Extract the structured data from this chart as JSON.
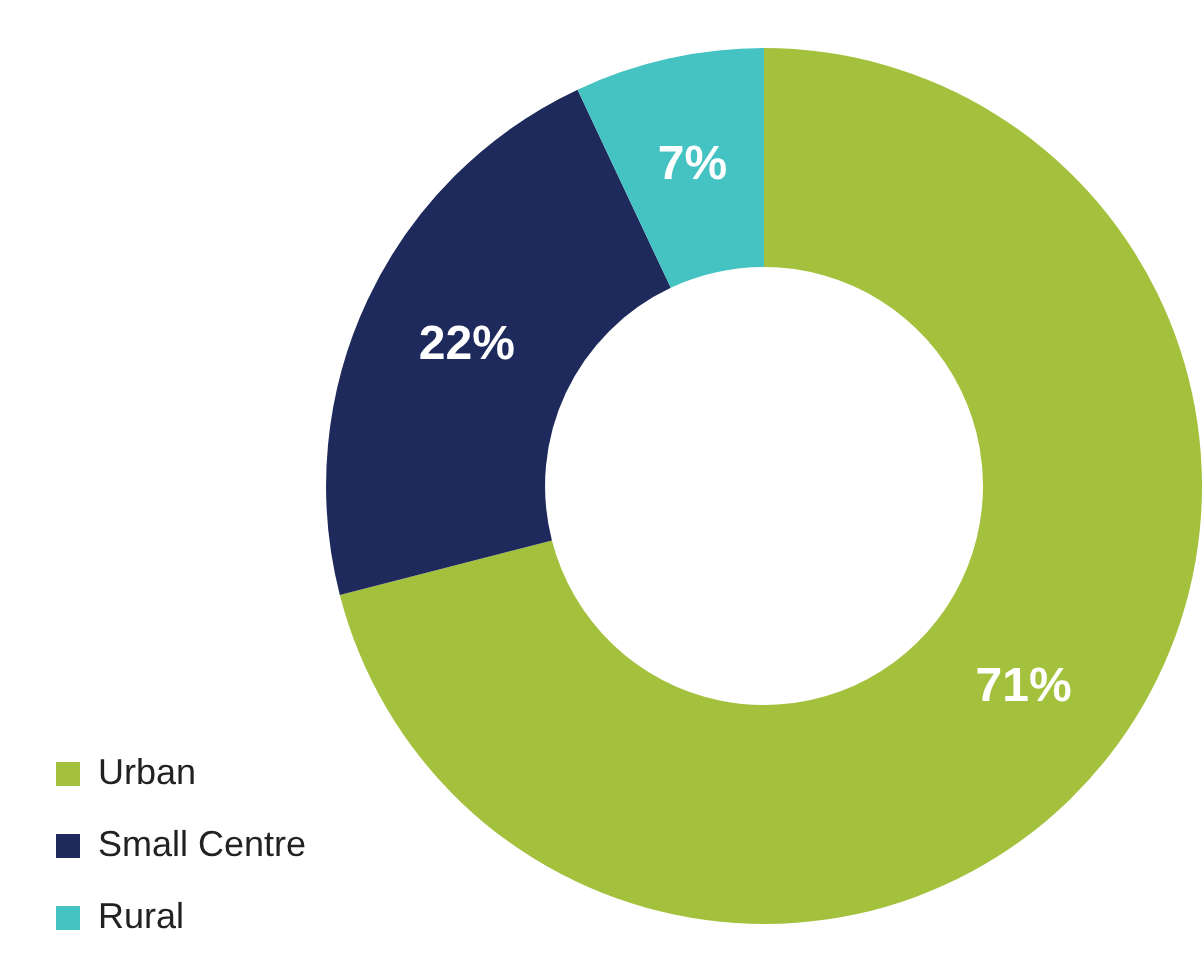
{
  "chart_data": {
    "type": "donut",
    "categories": [
      "Urban",
      "Small Centre",
      "Rural"
    ],
    "values": [
      71,
      22,
      7
    ],
    "colors": [
      "#a3c13c",
      "#1f2a5c",
      "#45c2c2"
    ],
    "value_labels": [
      "71%",
      "22%",
      "7%"
    ],
    "legend": "bottom left"
  }
}
